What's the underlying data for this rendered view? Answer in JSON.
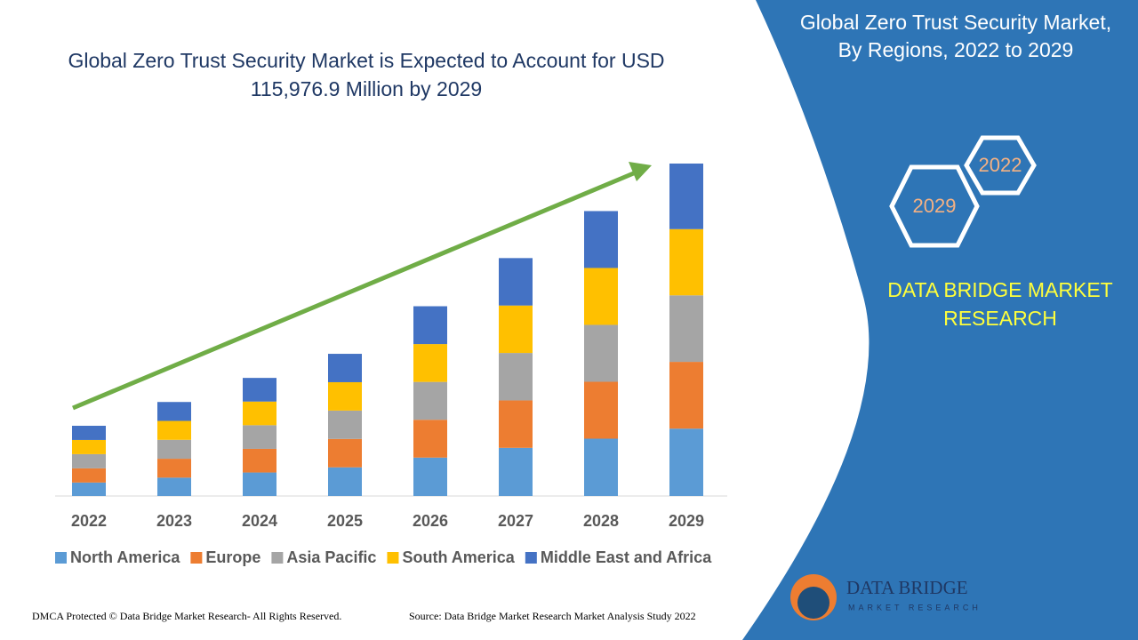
{
  "chart_data": {
    "type": "stacked-bar",
    "title": "Global Zero Trust Security Market is Expected to Account for USD 115,976.9 Million by 2029",
    "categories": [
      "2022",
      "2023",
      "2024",
      "2025",
      "2026",
      "2027",
      "2028",
      "2029"
    ],
    "series": [
      {
        "name": "North America",
        "color": "#5b9bd5",
        "values": [
          4700,
          6400,
          8200,
          10000,
          13400,
          16800,
          20000,
          23500
        ]
      },
      {
        "name": "Europe",
        "color": "#ed7d31",
        "values": [
          4950,
          6600,
          8250,
          9900,
          13200,
          16550,
          19850,
          23300
        ]
      },
      {
        "name": "Asia Pacific",
        "color": "#a5a5a5",
        "values": [
          4950,
          6600,
          8250,
          9900,
          13200,
          16550,
          19850,
          23200
        ]
      },
      {
        "name": "South America",
        "color": "#ffc000",
        "values": [
          4950,
          6600,
          8250,
          9900,
          13200,
          16550,
          19850,
          23100
        ]
      },
      {
        "name": "Middle East and Africa",
        "color": "#4472c4",
        "values": [
          4950,
          6600,
          8250,
          9900,
          13200,
          16550,
          19850,
          22877
        ]
      }
    ]
  },
  "panel": {
    "title": "Global Zero Trust Security Market, By Regions, 2022 to 2029",
    "hex_start": "2022",
    "hex_end": "2029",
    "brand": "DATA BRIDGE MARKET RESEARCH",
    "logo_name": "DATA BRIDGE",
    "logo_tagline": "MARKET RESEARCH"
  },
  "footer": {
    "copyright": "DMCA Protected © Data Bridge Market Research- All Rights Reserved.",
    "source": "Source: Data Bridge Market Research Market Analysis Study 2022"
  }
}
